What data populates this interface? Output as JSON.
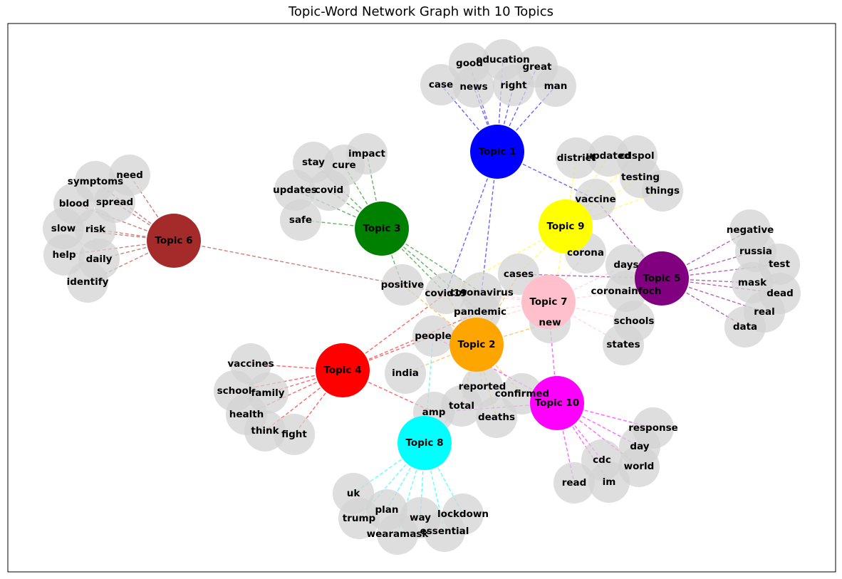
{
  "title": "Topic-Word Network Graph with 10 Topics",
  "topics": [
    {
      "id": "t1",
      "label": "Topic 1",
      "color": "#0000ff"
    },
    {
      "id": "t2",
      "label": "Topic 2",
      "color": "#ffa500"
    },
    {
      "id": "t3",
      "label": "Topic 3",
      "color": "#008000"
    },
    {
      "id": "t4",
      "label": "Topic 4",
      "color": "#ff0000"
    },
    {
      "id": "t5",
      "label": "Topic 5",
      "color": "#800080"
    },
    {
      "id": "t6",
      "label": "Topic 6",
      "color": "#a52a2a"
    },
    {
      "id": "t7",
      "label": "Topic 7",
      "color": "#ffc0cb"
    },
    {
      "id": "t8",
      "label": "Topic 8",
      "color": "#00ffff"
    },
    {
      "id": "t9",
      "label": "Topic 9",
      "color": "#ffff00"
    },
    {
      "id": "t10",
      "label": "Topic 10",
      "color": "#ff00ff"
    }
  ],
  "words": [
    "case",
    "good",
    "education",
    "great",
    "news",
    "right",
    "man",
    "district",
    "updated",
    "cdspol",
    "testing",
    "things",
    "vaccine",
    "stay",
    "impact",
    "cure",
    "updates",
    "covid",
    "safe",
    "symptoms",
    "need",
    "spread",
    "blood",
    "slow",
    "risk",
    "help",
    "daily",
    "identify",
    "negative",
    "russia",
    "test",
    "mask",
    "dead",
    "real",
    "data",
    "corona",
    "days",
    "coronainfoch",
    "cases",
    "positive",
    "covid19",
    "coronavirus",
    "pandemic",
    "new",
    "schools",
    "states",
    "people",
    "india",
    "vaccines",
    "school",
    "family",
    "health",
    "think",
    "fight",
    "reported",
    "confirmed",
    "total",
    "amp",
    "deaths",
    "response",
    "day",
    "cdc",
    "world",
    "read",
    "im",
    "uk",
    "plan",
    "way",
    "lockdown",
    "trump",
    "wearamask",
    "essential"
  ],
  "edges": [
    [
      "t1",
      "case"
    ],
    [
      "t1",
      "good"
    ],
    [
      "t1",
      "education"
    ],
    [
      "t1",
      "great"
    ],
    [
      "t1",
      "news"
    ],
    [
      "t1",
      "right"
    ],
    [
      "t1",
      "man"
    ],
    [
      "t1",
      "vaccine"
    ],
    [
      "t1",
      "covid19"
    ],
    [
      "t1",
      "coronavirus"
    ],
    [
      "t3",
      "stay"
    ],
    [
      "t3",
      "impact"
    ],
    [
      "t3",
      "cure"
    ],
    [
      "t3",
      "updates"
    ],
    [
      "t3",
      "covid"
    ],
    [
      "t3",
      "safe"
    ],
    [
      "t3",
      "positive"
    ],
    [
      "t3",
      "covid19"
    ],
    [
      "t3",
      "coronavirus"
    ],
    [
      "t3",
      "pandemic"
    ],
    [
      "t6",
      "symptoms"
    ],
    [
      "t6",
      "need"
    ],
    [
      "t6",
      "spread"
    ],
    [
      "t6",
      "blood"
    ],
    [
      "t6",
      "slow"
    ],
    [
      "t6",
      "risk"
    ],
    [
      "t6",
      "help"
    ],
    [
      "t6",
      "daily"
    ],
    [
      "t6",
      "identify"
    ],
    [
      "t6",
      "covid19"
    ],
    [
      "t9",
      "district"
    ],
    [
      "t9",
      "updated"
    ],
    [
      "t9",
      "cdspol"
    ],
    [
      "t9",
      "testing"
    ],
    [
      "t9",
      "things"
    ],
    [
      "t9",
      "vaccine"
    ],
    [
      "t9",
      "corona"
    ],
    [
      "t9",
      "cases"
    ],
    [
      "t9",
      "covid19"
    ],
    [
      "t9",
      "new"
    ],
    [
      "t5",
      "negative"
    ],
    [
      "t5",
      "russia"
    ],
    [
      "t5",
      "test"
    ],
    [
      "t5",
      "mask"
    ],
    [
      "t5",
      "dead"
    ],
    [
      "t5",
      "real"
    ],
    [
      "t5",
      "data"
    ],
    [
      "t5",
      "vaccine"
    ],
    [
      "t5",
      "coronainfoch"
    ],
    [
      "t5",
      "cases"
    ],
    [
      "t5",
      "days"
    ],
    [
      "t7",
      "corona"
    ],
    [
      "t7",
      "days"
    ],
    [
      "t7",
      "coronainfoch"
    ],
    [
      "t7",
      "cases"
    ],
    [
      "t7",
      "schools"
    ],
    [
      "t7",
      "states"
    ],
    [
      "t7",
      "new"
    ],
    [
      "t7",
      "coronavirus"
    ],
    [
      "t7",
      "covid19"
    ],
    [
      "t7",
      "pandemic"
    ],
    [
      "t7",
      "people"
    ],
    [
      "t2",
      "people"
    ],
    [
      "t2",
      "india"
    ],
    [
      "t2",
      "pandemic"
    ],
    [
      "t2",
      "positive"
    ],
    [
      "t2",
      "new"
    ],
    [
      "t2",
      "reported"
    ],
    [
      "t2",
      "confirmed"
    ],
    [
      "t2",
      "total"
    ],
    [
      "t2",
      "deaths"
    ],
    [
      "t2",
      "cases"
    ],
    [
      "t2",
      "covid19"
    ],
    [
      "t4",
      "vaccines"
    ],
    [
      "t4",
      "school"
    ],
    [
      "t4",
      "family"
    ],
    [
      "t4",
      "health"
    ],
    [
      "t4",
      "think"
    ],
    [
      "t4",
      "fight"
    ],
    [
      "t4",
      "people"
    ],
    [
      "t4",
      "covid19"
    ],
    [
      "t4",
      "amp"
    ],
    [
      "t4",
      "pandemic"
    ],
    [
      "t10",
      "response"
    ],
    [
      "t10",
      "day"
    ],
    [
      "t10",
      "cdc"
    ],
    [
      "t10",
      "world"
    ],
    [
      "t10",
      "read"
    ],
    [
      "t10",
      "im"
    ],
    [
      "t10",
      "amp"
    ],
    [
      "t10",
      "confirmed"
    ],
    [
      "t10",
      "people"
    ],
    [
      "t10",
      "new"
    ],
    [
      "t8",
      "uk"
    ],
    [
      "t8",
      "plan"
    ],
    [
      "t8",
      "way"
    ],
    [
      "t8",
      "lockdown"
    ],
    [
      "t8",
      "trump"
    ],
    [
      "t8",
      "wearamask"
    ],
    [
      "t8",
      "essential"
    ],
    [
      "t8",
      "amp"
    ],
    [
      "t8",
      "people"
    ],
    [
      "t8",
      "total"
    ]
  ],
  "word_node_color": "#d3d3d3",
  "edge_style": "dashed"
}
